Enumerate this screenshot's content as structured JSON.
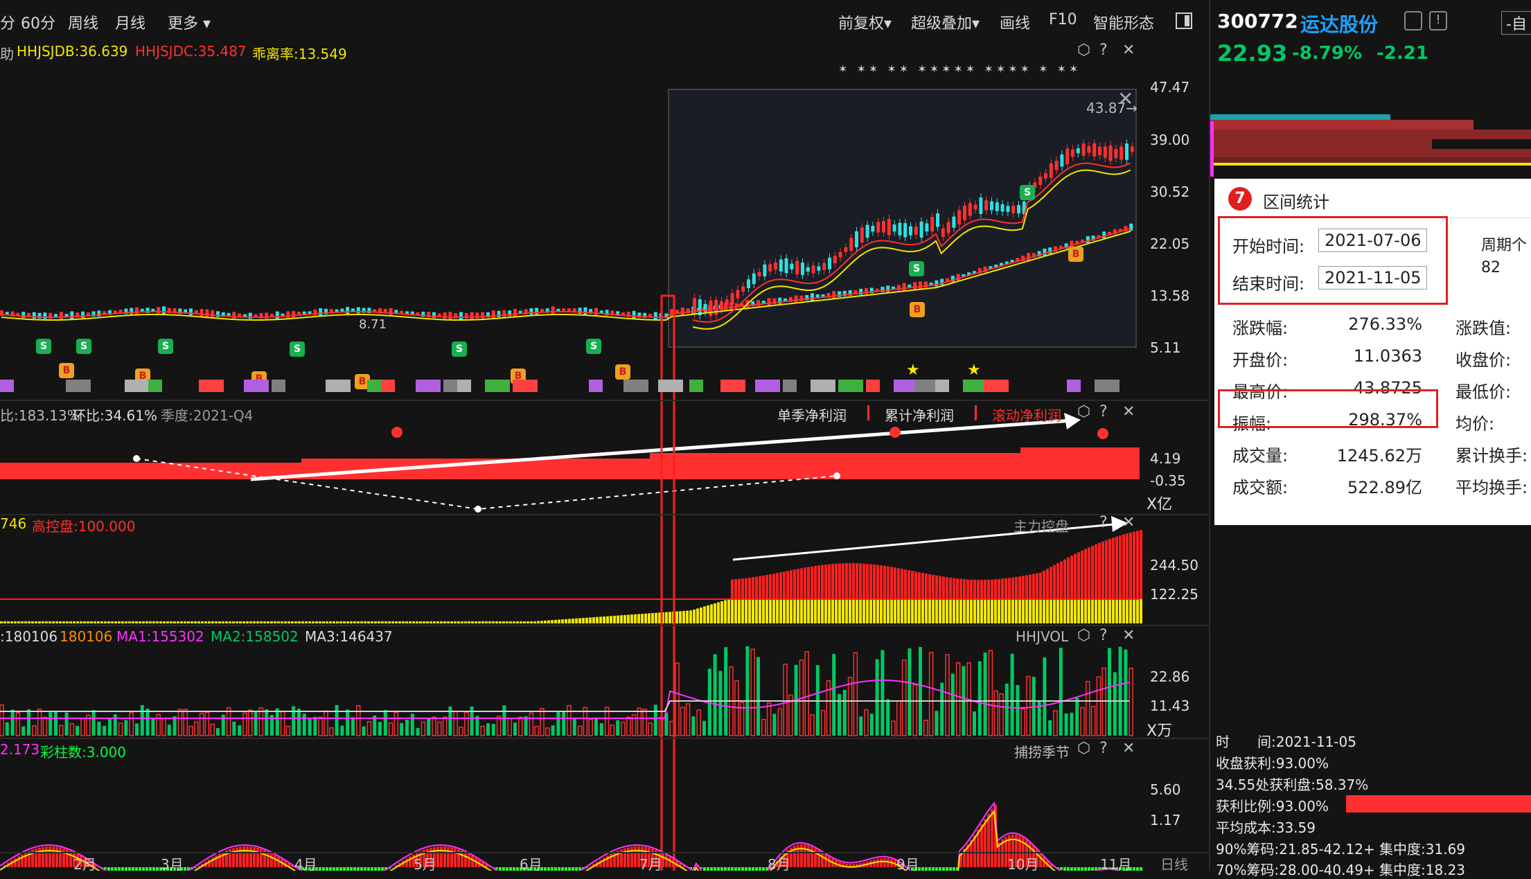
{
  "toolbar": {
    "period_left": "分",
    "period_60": "60分",
    "period_week": "周线",
    "period_month": "月线",
    "more": "更多",
    "adjust": "前复权",
    "overlay": "超级叠加",
    "draw": "画线",
    "f10": "F10",
    "smart": "智能形态"
  },
  "panel1": {
    "prefix": "助",
    "hhjsjdb": "HHJSJDB:36.639",
    "hhjsjdc": "HHJSJDC:35.487",
    "deviation": "乖离率:13.549",
    "axis": [
      "47.47",
      "39.00",
      "30.52",
      "22.05",
      "13.58",
      "5.11"
    ],
    "low_label": "8.71",
    "high_label": "43.87→"
  },
  "panel2": {
    "left": "比:183.13%",
    "qoq": "环比:34.61%",
    "quarter": "季度:2021-Q4",
    "tab1": "单季净利润",
    "tab2": "累计净利润",
    "tab3": "滚动净利润",
    "axis": [
      "4.19",
      "-0.35",
      "X亿"
    ]
  },
  "panel3": {
    "left": "746",
    "high_ctrl": "高控盘:100.000",
    "title": "主力控盘",
    "axis": [
      "244.50",
      "122.25"
    ]
  },
  "panel4": {
    "v1": ":180106",
    "v2": "180106",
    "ma1": "MA1:155302",
    "ma2": "MA2:158502",
    "ma3": "MA3:146437",
    "title": "HHJVOL",
    "axis": [
      "22.86",
      "11.43",
      "X万"
    ]
  },
  "panel5": {
    "v1": "2.173",
    "color_bars": "彩柱数:3.000",
    "title": "捕捞季节",
    "axis": [
      "5.60",
      "1.17"
    ]
  },
  "months": [
    "2月",
    "3月",
    "4月",
    "5月",
    "6月",
    "7月",
    "8月",
    "9月",
    "10月",
    "11月"
  ],
  "period_label": "日线",
  "stock": {
    "code": "300772",
    "name": "运达股份",
    "price": "22.93",
    "pct": "-8.79%",
    "chg": "-2.21",
    "self_btn": "-自"
  },
  "stats": {
    "title": "区间统计",
    "start_label": "开始时间:",
    "start_value": "2021-07-06",
    "end_label": "结束时间:",
    "end_value": "2021-11-05",
    "period_label": "周期个",
    "period_value": "82",
    "rows": [
      {
        "label": "涨跌幅:",
        "value": "276.33%",
        "label2": "涨跌值:"
      },
      {
        "label": "开盘价:",
        "value": "11.0363",
        "label2": "收盘价:"
      },
      {
        "label": "最高价:",
        "value": "43.8725",
        "label2": "最低价:"
      },
      {
        "label": "振幅:",
        "value": "298.37%",
        "label2": "均价:"
      },
      {
        "label": "成交量:",
        "value": "1245.62万",
        "label2": "累计换手:"
      },
      {
        "label": "成交额:",
        "value": "522.89亿",
        "label2": "平均换手:"
      }
    ]
  },
  "chip": {
    "time": "时　　间:2021-11-05",
    "profit": "收盘获利:93.00%",
    "at_price": "34.55处获利盘:58.37%",
    "ratio": "获利比例:93.00%",
    "avg_cost": "平均成本:33.59",
    "c90": "90%筹码:21.85-42.12+ 集中度:31.69",
    "c70": "70%筹码:28.00-40.49+ 集中度:18.23"
  },
  "colors": {
    "up": "#ff3030",
    "down": "#00c864",
    "yellow": "#f2e600",
    "accent_blue": "#1ea0ff"
  }
}
